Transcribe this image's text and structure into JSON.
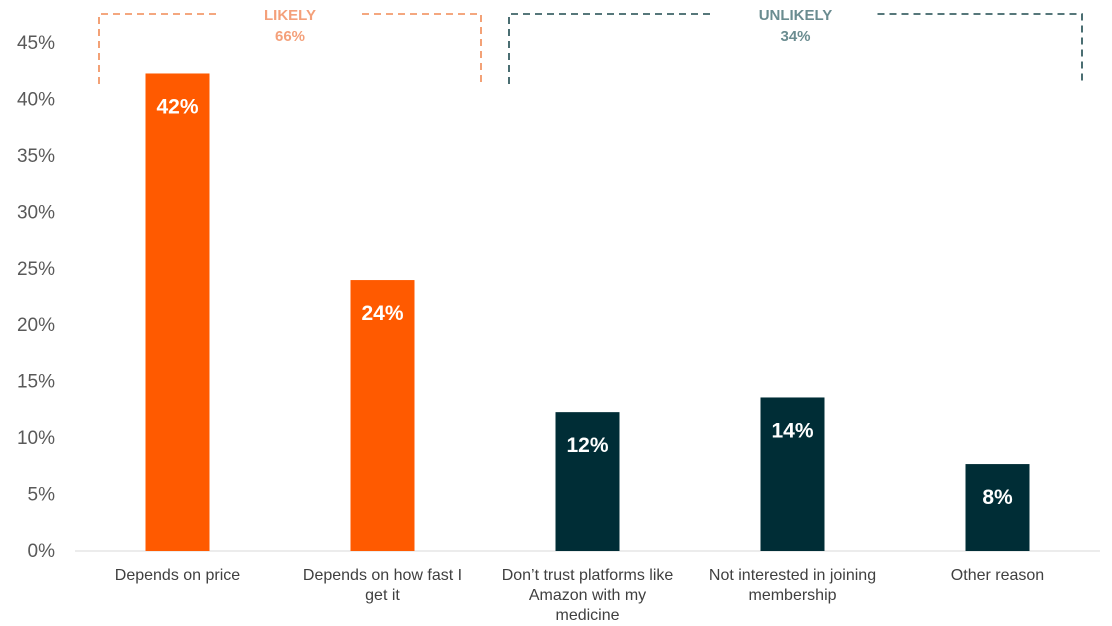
{
  "chart_data": {
    "type": "bar",
    "categories": [
      [
        "Depends on price"
      ],
      [
        "Depends on how fast I",
        "get it"
      ],
      [
        "Don’t trust platforms like",
        "Amazon with my",
        "medicine"
      ],
      [
        "Not interested in joining",
        "membership"
      ],
      [
        "Other reason"
      ]
    ],
    "values": [
      42.3,
      24.0,
      12.3,
      13.6,
      7.7
    ],
    "data_labels": [
      "42%",
      "24%",
      "12%",
      "14%",
      "8%"
    ],
    "bar_colors": [
      "#FF5A00",
      "#FF5A00",
      "#002D36",
      "#002D36",
      "#002D36"
    ],
    "ylim": [
      0,
      45
    ],
    "yticks": [
      0,
      5,
      10,
      15,
      20,
      25,
      30,
      35,
      40,
      45
    ],
    "ytick_labels": [
      "0%",
      "5%",
      "10%",
      "15%",
      "20%",
      "25%",
      "30%",
      "35%",
      "40%",
      "45%"
    ],
    "grid": false,
    "groups": [
      {
        "title": "LIKELY",
        "value": "66%",
        "color": "#F4A07A",
        "bracket_color": "#F08A55",
        "bars": [
          0,
          1
        ]
      },
      {
        "title": "UNLIKELY",
        "value": "34%",
        "color": "#6A8C90",
        "bracket_color": "#1E4A4F",
        "bars": [
          2,
          3,
          4
        ]
      }
    ]
  }
}
